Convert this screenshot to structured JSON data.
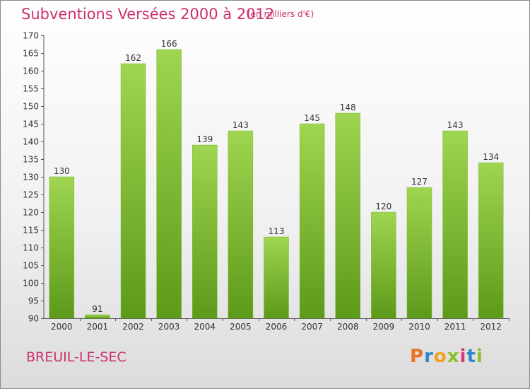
{
  "title": "Subventions Versées 2000 à 2012",
  "subtitle": "(en milliers d'€)",
  "commune": "BREUIL-LE-SEC",
  "logo": {
    "text": "Proxiti",
    "colors": [
      "#e8732a",
      "#2f87c8",
      "#f0a11f",
      "#8bbf2a",
      "#d63b6f",
      "#2f87c8",
      "#8bbf2a"
    ]
  },
  "colors": {
    "accent": "#cc2f6e",
    "bar_top": "#9fd550",
    "bar_bottom": "#5d9a1a",
    "axis": "#555555",
    "grid_tick": "#333333"
  },
  "chart_data": {
    "type": "bar",
    "categories": [
      "2000",
      "2001",
      "2002",
      "2003",
      "2004",
      "2005",
      "2006",
      "2007",
      "2008",
      "2009",
      "2010",
      "2011",
      "2012"
    ],
    "values": [
      130,
      91,
      162,
      166,
      139,
      143,
      113,
      145,
      148,
      120,
      127,
      143,
      134
    ],
    "ylim": [
      90,
      170
    ],
    "yticks": [
      90,
      95,
      100,
      105,
      110,
      115,
      120,
      125,
      130,
      135,
      140,
      145,
      150,
      155,
      160,
      165,
      170
    ],
    "grid": false,
    "xlabel": "",
    "ylabel": ""
  }
}
